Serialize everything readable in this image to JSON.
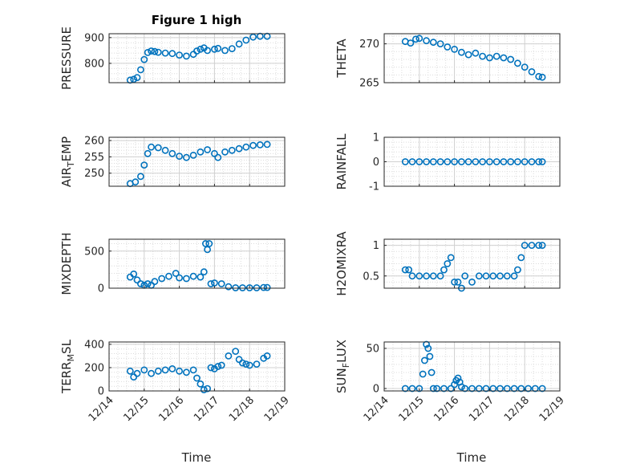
{
  "figure_title": "Figure 1 high",
  "colors": {
    "marker": "#0072BD",
    "axis": "#262626",
    "grid": "#dcdcdc"
  },
  "x_tick_labels": [
    "12/14",
    "12/15",
    "12/16",
    "12/17",
    "12/18",
    "12/19"
  ],
  "xlabel": "Time",
  "chart_data": [
    {
      "id": "pressure",
      "type": "scatter",
      "ylabel": "PRESSURE",
      "title": "Figure 1 high",
      "xlim": [
        0,
        5
      ],
      "ylim": [
        725,
        915
      ],
      "yticks": [
        800,
        900
      ],
      "ytick_labels": [
        "800",
        "900"
      ],
      "x": [
        0.6,
        0.7,
        0.8,
        0.9,
        1.0,
        1.1,
        1.2,
        1.3,
        1.4,
        1.6,
        1.8,
        2.0,
        2.2,
        2.4,
        2.5,
        2.6,
        2.7,
        2.8,
        3.0,
        3.1,
        3.3,
        3.5,
        3.7,
        3.9,
        4.1,
        4.3,
        4.5
      ],
      "values": [
        735,
        738,
        745,
        775,
        815,
        842,
        848,
        846,
        843,
        840,
        838,
        832,
        828,
        835,
        848,
        855,
        860,
        850,
        855,
        858,
        850,
        857,
        875,
        890,
        902,
        905,
        905
      ]
    },
    {
      "id": "theta",
      "type": "scatter",
      "ylabel": "THETA",
      "xlim": [
        0,
        5
      ],
      "ylim": [
        265,
        271.3
      ],
      "yticks": [
        265,
        270
      ],
      "ytick_labels": [
        "265",
        "270"
      ],
      "x": [
        0.6,
        0.75,
        0.9,
        1.0,
        1.2,
        1.4,
        1.6,
        1.8,
        2.0,
        2.2,
        2.4,
        2.6,
        2.8,
        3.0,
        3.2,
        3.4,
        3.6,
        3.8,
        4.0,
        4.2,
        4.4,
        4.5
      ],
      "values": [
        270.3,
        270.1,
        270.6,
        270.7,
        270.4,
        270.2,
        270.0,
        269.6,
        269.3,
        268.9,
        268.6,
        268.8,
        268.4,
        268.2,
        268.4,
        268.2,
        268.0,
        267.5,
        267.0,
        266.4,
        265.8,
        265.7
      ]
    },
    {
      "id": "air_temp",
      "type": "scatter",
      "ylabel": "AIR",
      "ylabel_sub": "T",
      "ylabel_suffix": "EMP",
      "xlim": [
        0,
        5
      ],
      "ylim": [
        246,
        261
      ],
      "yticks": [
        250,
        255,
        260
      ],
      "ytick_labels": [
        "250",
        "255",
        "260"
      ],
      "x": [
        0.6,
        0.75,
        0.9,
        1.0,
        1.1,
        1.2,
        1.4,
        1.6,
        1.8,
        2.0,
        2.2,
        2.4,
        2.6,
        2.8,
        3.0,
        3.1,
        3.3,
        3.5,
        3.7,
        3.9,
        4.1,
        4.3,
        4.5
      ],
      "values": [
        246.8,
        247.3,
        249,
        252.5,
        256,
        258,
        257.8,
        257,
        256,
        255.2,
        254.8,
        255.5,
        256.5,
        257.2,
        256,
        254.8,
        256.5,
        257,
        257.5,
        258,
        258.5,
        258.7,
        258.8
      ]
    },
    {
      "id": "rainfall",
      "type": "scatter",
      "ylabel": "RAINFALL",
      "xlim": [
        0,
        5
      ],
      "ylim": [
        -1,
        1
      ],
      "yticks": [
        -1,
        0,
        1
      ],
      "ytick_labels": [
        "-1",
        "0",
        "1"
      ],
      "x": [
        0.6,
        0.8,
        1.0,
        1.2,
        1.4,
        1.6,
        1.8,
        2.0,
        2.2,
        2.4,
        2.6,
        2.8,
        3.0,
        3.2,
        3.4,
        3.6,
        3.8,
        4.0,
        4.2,
        4.4,
        4.5
      ],
      "values": [
        0,
        0,
        0,
        0,
        0,
        0,
        0,
        0,
        0,
        0,
        0,
        0,
        0,
        0,
        0,
        0,
        0,
        0,
        0,
        0,
        0
      ]
    },
    {
      "id": "mixdepth",
      "type": "scatter",
      "ylabel": "MIXDEPTH",
      "xlim": [
        0,
        5
      ],
      "ylim": [
        0,
        660
      ],
      "yticks": [
        0,
        500
      ],
      "ytick_labels": [
        "0",
        "500"
      ],
      "x": [
        0.6,
        0.7,
        0.8,
        0.9,
        1.0,
        1.1,
        1.2,
        1.3,
        1.5,
        1.7,
        1.9,
        2.0,
        2.2,
        2.4,
        2.6,
        2.7,
        2.75,
        2.8,
        2.85,
        2.9,
        3.0,
        3.2,
        3.4,
        3.6,
        3.8,
        4.0,
        4.2,
        4.4,
        4.5
      ],
      "values": [
        150,
        190,
        110,
        60,
        40,
        60,
        40,
        90,
        130,
        160,
        200,
        140,
        130,
        160,
        150,
        220,
        600,
        520,
        600,
        60,
        70,
        60,
        20,
        5,
        5,
        5,
        5,
        10,
        10
      ]
    },
    {
      "id": "h2omixra",
      "type": "scatter",
      "ylabel": "H2OMIXRA",
      "xlim": [
        0,
        5
      ],
      "ylim": [
        0.3,
        1.1
      ],
      "yticks": [
        0.5,
        1
      ],
      "ytick_labels": [
        "0.5",
        "1"
      ],
      "x": [
        0.6,
        0.7,
        0.8,
        1.0,
        1.2,
        1.4,
        1.6,
        1.7,
        1.8,
        1.9,
        2.0,
        2.1,
        2.2,
        2.3,
        2.5,
        2.7,
        2.9,
        3.1,
        3.3,
        3.5,
        3.7,
        3.8,
        3.9,
        4.0,
        4.2,
        4.4,
        4.5
      ],
      "values": [
        0.6,
        0.6,
        0.5,
        0.5,
        0.5,
        0.5,
        0.5,
        0.6,
        0.7,
        0.8,
        0.4,
        0.4,
        0.3,
        0.5,
        0.4,
        0.5,
        0.5,
        0.5,
        0.5,
        0.5,
        0.5,
        0.6,
        0.8,
        1.0,
        1.0,
        1.0,
        1.0
      ]
    },
    {
      "id": "terr_msl",
      "type": "scatter",
      "ylabel": "TERR",
      "ylabel_sub": "M",
      "ylabel_suffix": "SL",
      "xlim": [
        0,
        5
      ],
      "ylim": [
        0,
        420
      ],
      "yticks": [
        0,
        200,
        400
      ],
      "ytick_labels": [
        "0",
        "200",
        "400"
      ],
      "x": [
        0.6,
        0.7,
        0.8,
        1.0,
        1.2,
        1.4,
        1.6,
        1.8,
        2.0,
        2.2,
        2.4,
        2.5,
        2.6,
        2.7,
        2.8,
        2.9,
        3.0,
        3.1,
        3.2,
        3.4,
        3.6,
        3.7,
        3.8,
        3.9,
        4.0,
        4.2,
        4.4,
        4.5
      ],
      "values": [
        170,
        120,
        150,
        180,
        150,
        170,
        180,
        190,
        170,
        160,
        180,
        110,
        60,
        10,
        20,
        200,
        190,
        210,
        220,
        300,
        340,
        270,
        240,
        230,
        220,
        230,
        280,
        300
      ]
    },
    {
      "id": "sun_flux",
      "type": "scatter",
      "ylabel": "SUN",
      "ylabel_sub": "F",
      "ylabel_suffix": "LUX",
      "xlim": [
        0,
        5
      ],
      "ylim": [
        -3,
        58
      ],
      "yticks": [
        0,
        50
      ],
      "ytick_labels": [
        "0",
        "50"
      ],
      "x": [
        0.6,
        0.8,
        1.0,
        1.1,
        1.15,
        1.2,
        1.25,
        1.3,
        1.35,
        1.4,
        1.5,
        1.7,
        1.9,
        2.0,
        2.05,
        2.1,
        2.15,
        2.2,
        2.3,
        2.5,
        2.7,
        2.9,
        3.1,
        3.3,
        3.5,
        3.7,
        3.9,
        4.1,
        4.3,
        4.5
      ],
      "values": [
        0,
        0,
        0,
        18,
        35,
        55,
        50,
        40,
        20,
        0,
        0,
        0,
        0,
        5,
        10,
        13,
        8,
        2,
        0,
        0,
        0,
        0,
        0,
        0,
        0,
        0,
        0,
        0,
        0,
        0
      ]
    }
  ]
}
